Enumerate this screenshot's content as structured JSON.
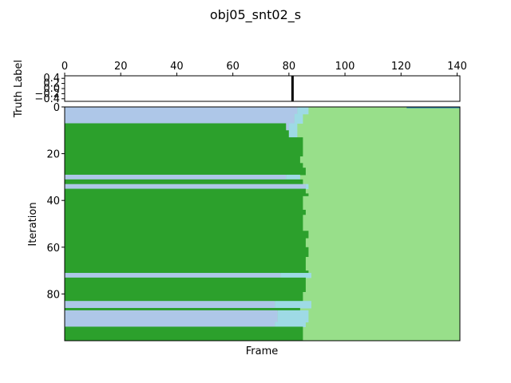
{
  "chart_data": [
    {
      "type": "line",
      "title": "obj05_snt02_s",
      "ylabel": "Truth Label",
      "xlim": [
        0,
        141
      ],
      "ylim": [
        -0.5,
        0.5
      ],
      "x_ticks": [
        "0",
        "20",
        "40",
        "60",
        "80",
        "100",
        "120",
        "140"
      ],
      "x_tick_values": [
        0,
        20,
        40,
        60,
        80,
        100,
        120,
        140
      ],
      "y_ticks": [
        "−0.4",
        "−0.2",
        "0.0",
        "0.2",
        "0.4"
      ],
      "y_tick_values": [
        -0.4,
        -0.2,
        0.0,
        0.2,
        0.4
      ],
      "x_axis_position": "top",
      "events": [
        81
      ],
      "color": "#000000"
    },
    {
      "type": "heatmap",
      "xlabel": "Frame",
      "ylabel": "Iteration",
      "xlim": [
        0,
        141
      ],
      "ylim": [
        100,
        0
      ],
      "y_ticks": [
        "0",
        "20",
        "40",
        "60",
        "80"
      ],
      "y_tick_values": [
        0,
        20,
        40,
        60,
        80
      ],
      "x_ticks_visible": false,
      "colors": {
        "class_a": "#aec7e8",
        "class_b": "#2ca02c",
        "class_c": "#98df8a",
        "class_d": "#9edae5",
        "class_e": "#1f77b4"
      },
      "rows": [
        {
          "from": 0,
          "to": 3,
          "a_end": 83,
          "d_end": 87
        },
        {
          "from": 3,
          "to": 7,
          "a_end": 82,
          "d_end": 85
        },
        {
          "from": 7,
          "to": 10,
          "b_end": 79,
          "a_end": 80,
          "d_end": 83
        },
        {
          "from": 10,
          "to": 13,
          "b_end": 80,
          "d_end": 83
        },
        {
          "from": 13,
          "to": 21,
          "b_end": 85
        },
        {
          "from": 21,
          "to": 24,
          "b_end": 84
        },
        {
          "from": 24,
          "to": 26,
          "b_end": 85
        },
        {
          "from": 26,
          "to": 29,
          "b_end": 86
        },
        {
          "from": 29,
          "to": 31,
          "a_end": 79,
          "d_end": 84
        },
        {
          "from": 31,
          "to": 33,
          "b_end": 85
        },
        {
          "from": 33,
          "to": 35,
          "a_end": 86,
          "d_end": 87
        },
        {
          "from": 35,
          "to": 37,
          "b_end": 86
        },
        {
          "from": 37,
          "to": 38,
          "b_end": 87
        },
        {
          "from": 38,
          "to": 44,
          "b_end": 85
        },
        {
          "from": 44,
          "to": 46,
          "b_end": 86
        },
        {
          "from": 46,
          "to": 53,
          "b_end": 85
        },
        {
          "from": 53,
          "to": 56,
          "b_end": 87
        },
        {
          "from": 56,
          "to": 60,
          "b_end": 86
        },
        {
          "from": 60,
          "to": 64,
          "b_end": 87
        },
        {
          "from": 64,
          "to": 70,
          "b_end": 86
        },
        {
          "from": 70,
          "to": 71,
          "b_end": 87
        },
        {
          "from": 71,
          "to": 73,
          "a_end": 77,
          "d_end": 88
        },
        {
          "from": 73,
          "to": 79,
          "b_end": 86
        },
        {
          "from": 79,
          "to": 83,
          "b_end": 85
        },
        {
          "from": 83,
          "to": 86,
          "a_end": 75,
          "d_end": 88
        },
        {
          "from": 86,
          "to": 87,
          "b_end": 84
        },
        {
          "from": 87,
          "to": 92,
          "a_end": 76,
          "d_end": 87
        },
        {
          "from": 92,
          "to": 94,
          "a_end": 75,
          "d_end": 86
        },
        {
          "from": 94,
          "to": 100,
          "b_end": 85
        }
      ],
      "top_right_mark": {
        "row": 0,
        "from": 122,
        "to": 141,
        "color": "#1f77b4"
      }
    }
  ]
}
